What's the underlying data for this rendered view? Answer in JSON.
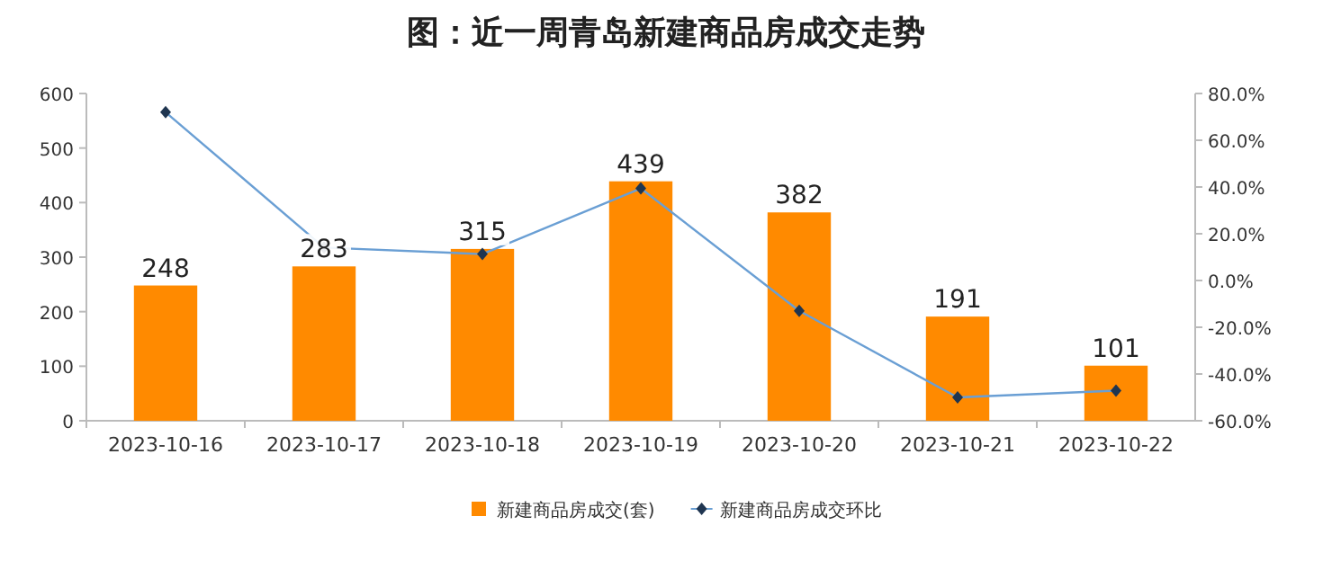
{
  "chart_data": {
    "type": "bar",
    "title": "图：近一周青岛新建商品房成交走势",
    "categories": [
      "2023-10-16",
      "2023-10-17",
      "2023-10-18",
      "2023-10-19",
      "2023-10-20",
      "2023-10-21",
      "2023-10-22"
    ],
    "series": [
      {
        "name": "新建商品房成交(套)",
        "color": "#ff8a00",
        "values": [
          248,
          283,
          315,
          439,
          382,
          191,
          101
        ],
        "value_labels": [
          "248",
          "283",
          "315",
          "439",
          "382",
          "191",
          "101"
        ]
      },
      {
        "name": "新建商品房成交环比",
        "type": "line",
        "axis": "y2",
        "color": "#6a9fd4",
        "marker": "diamond",
        "values": [
          72,
          14.1,
          11.3,
          39.4,
          -13,
          -50,
          -47.1
        ]
      }
    ],
    "ylim": [
      0,
      600
    ],
    "yticks": [
      0,
      100,
      200,
      300,
      400,
      500,
      600
    ],
    "y2lim": [
      -60,
      80
    ],
    "y2ticks": [
      {
        "value": -60,
        "label": "-60.0%"
      },
      {
        "value": -40,
        "label": "-40.0%"
      },
      {
        "value": -20,
        "label": "-20.0%"
      },
      {
        "value": 0,
        "label": "0.0%"
      },
      {
        "value": 20,
        "label": "20.0%"
      },
      {
        "value": 40,
        "label": "40.0%"
      },
      {
        "value": 60,
        "label": "60.0%"
      },
      {
        "value": 80,
        "label": "80.0%"
      }
    ],
    "legend": "bottom"
  }
}
